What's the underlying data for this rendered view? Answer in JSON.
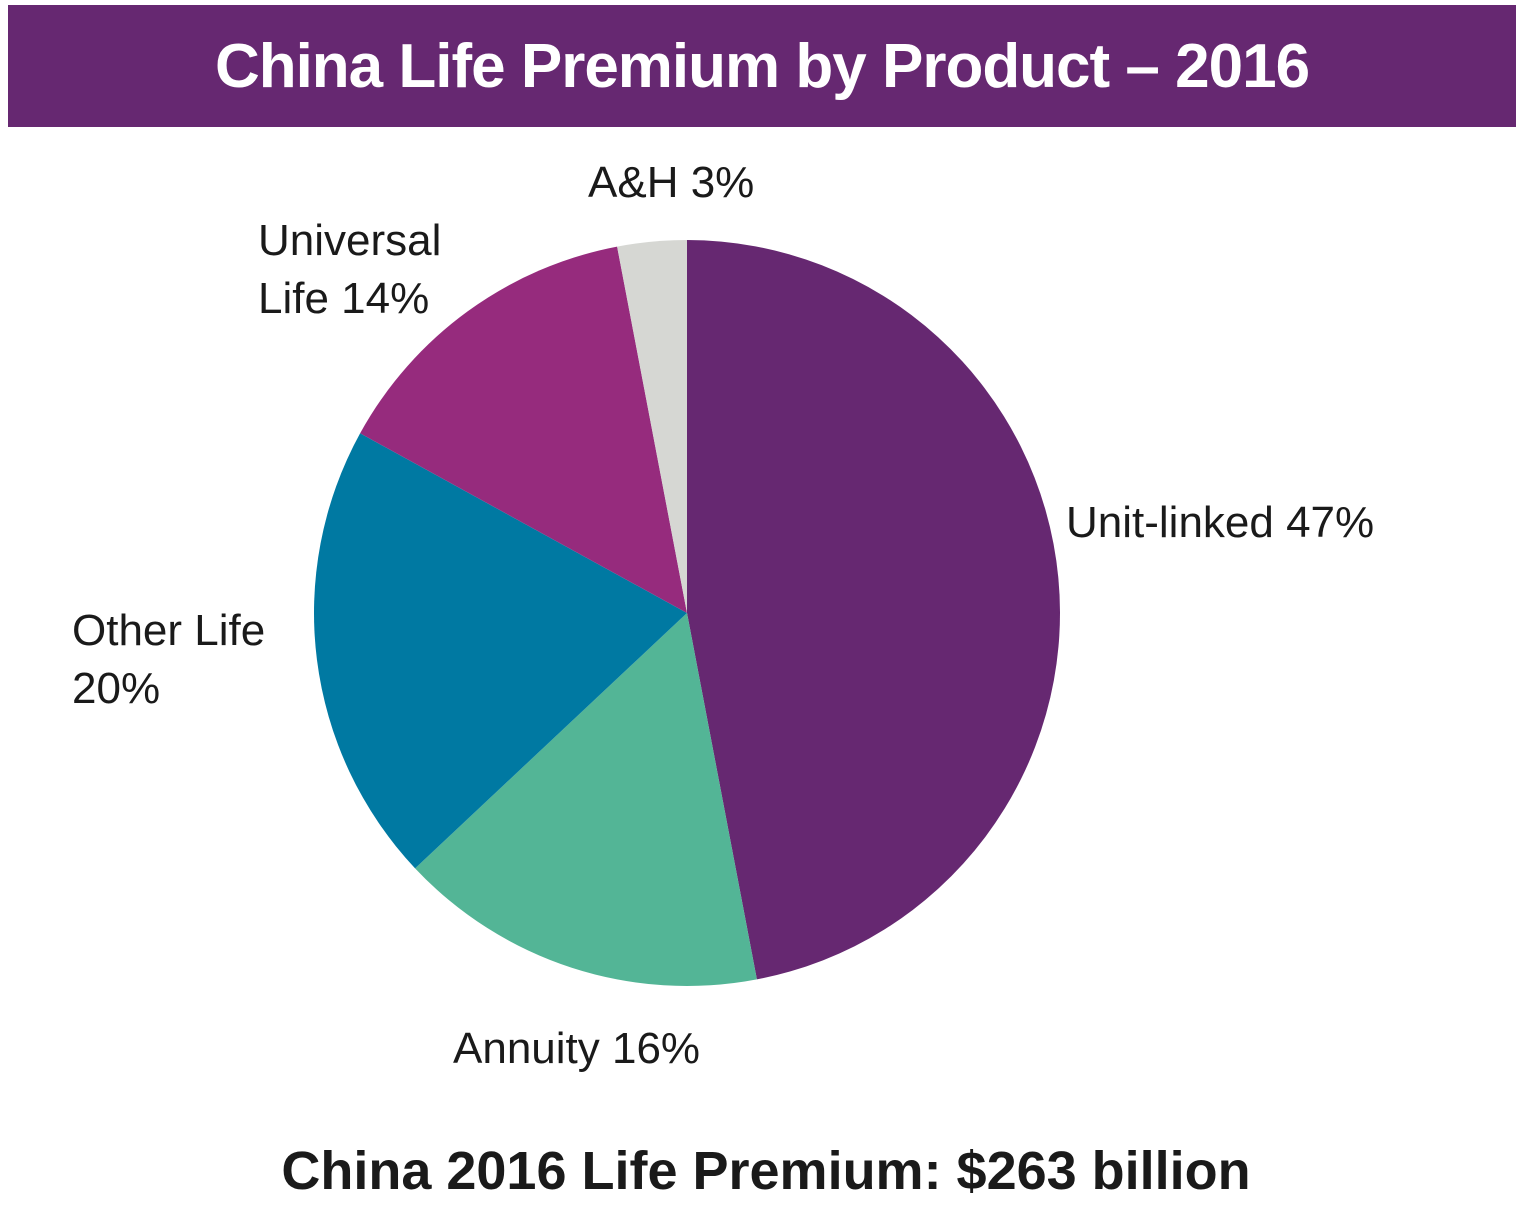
{
  "chart_data": {
    "type": "pie",
    "title": "China Life Premium by Product – 2016",
    "slices": [
      {
        "label_lines": [
          "Unit-linked 47%"
        ],
        "value": 47,
        "color": "#662871"
      },
      {
        "label_lines": [
          "Annuity 16%"
        ],
        "value": 16,
        "color": "#53b596"
      },
      {
        "label_lines": [
          "Other Life",
          "20%"
        ],
        "value": 20,
        "color": "#0079a2"
      },
      {
        "label_lines": [
          "Universal",
          "Life 14%"
        ],
        "value": 14,
        "color": "#962b7d"
      },
      {
        "label_lines": [
          "A&H 3%"
        ],
        "value": 3,
        "color": "#d6d7d3"
      }
    ],
    "start": "12 o'clock",
    "direction": "clockwise",
    "footer": "China 2016 Life Premium: $263 billion"
  }
}
